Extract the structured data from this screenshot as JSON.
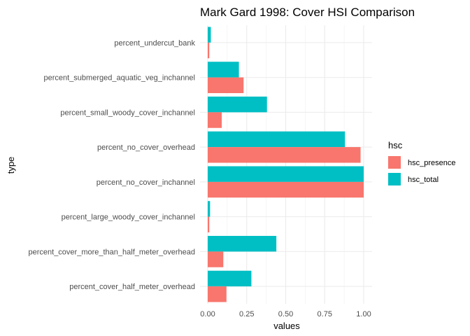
{
  "chart_data": {
    "type": "bar",
    "orientation": "horizontal",
    "title": "Mark Gard 1998: Cover HSI Comparison",
    "xlabel": "values",
    "ylabel": "type",
    "xlim": [
      0,
      1.0
    ],
    "x_ticks": [
      "0.00",
      "0.25",
      "0.50",
      "0.75",
      "1.00"
    ],
    "grid": true,
    "legend_position": "right",
    "legend_title": "hsc",
    "categories": [
      "percent_undercut_bank",
      "percent_submerged_aquatic_veg_inchannel",
      "percent_small_woody_cover_inchannel",
      "percent_no_cover_overhead",
      "percent_no_cover_inchannel",
      "percent_large_woody_cover_inchannel",
      "percent_cover_more_than_half_meter_overhead",
      "percent_cover_half_meter_overhead"
    ],
    "series": [
      {
        "name": "hsc_presence",
        "color": "#F8766D",
        "values": [
          0.01,
          0.23,
          0.09,
          0.98,
          1.0,
          0.01,
          0.1,
          0.12
        ]
      },
      {
        "name": "hsc_total",
        "color": "#00BFC4",
        "values": [
          0.02,
          0.2,
          0.38,
          0.88,
          1.0,
          0.015,
          0.44,
          0.28
        ]
      }
    ]
  }
}
